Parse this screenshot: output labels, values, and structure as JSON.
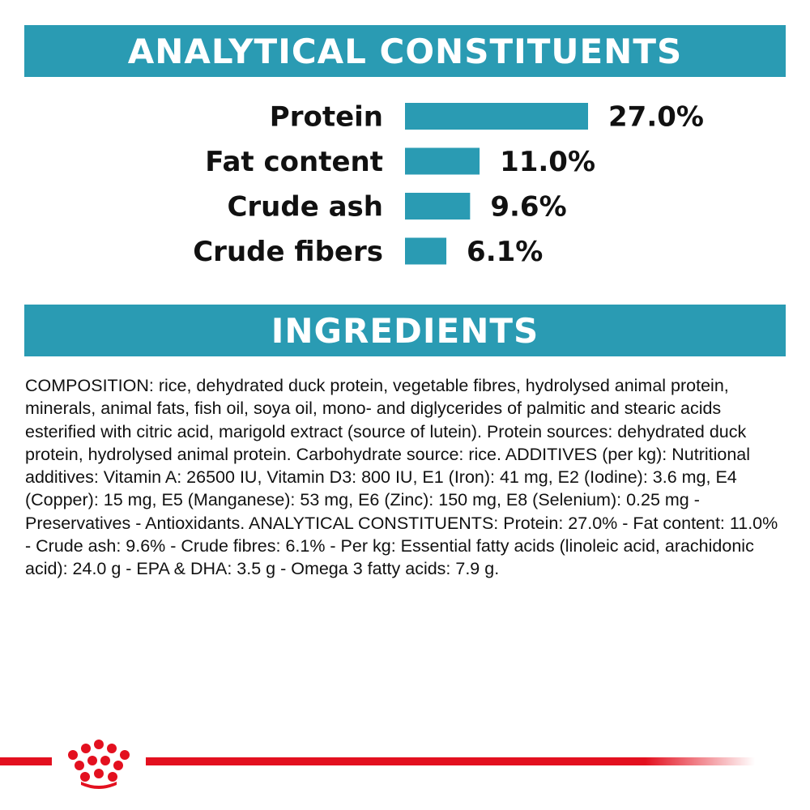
{
  "analytical": {
    "title": "ANALYTICAL CONSTITUENTS"
  },
  "chart_data": {
    "type": "bar",
    "orientation": "horizontal",
    "title": "ANALYTICAL CONSTITUENTS",
    "categories": [
      "Protein",
      "Fat content",
      "Crude ash",
      "Crude fibers"
    ],
    "values": [
      27.0,
      11.0,
      9.6,
      6.1
    ],
    "value_labels": [
      "27.0%",
      "11.0%",
      "9.6%",
      "6.1%"
    ],
    "unit": "%",
    "xlim": [
      0,
      27.0
    ],
    "grid": false,
    "legend": "none",
    "bar_color": "#2a9bb3"
  },
  "ingredients": {
    "title": "INGREDIENTS",
    "composition": "COMPOSITION: rice, dehydrated duck protein, vegetable fibres, hydrolysed animal protein, minerals, animal fats, fish oil, soya oil, mono- and diglycerides of palmitic and stearic acids esterified with citric acid, marigold extract (source of lutein). Protein sources: dehydrated duck protein, hydrolysed animal protein. Carbohydrate source: rice. ADDITIVES (per kg): Nutritional additives: Vitamin A: 26500 IU, Vitamin D3: 800 IU, E1 (Iron): 41 mg, E2 (Iodine): 3.6 mg, E4 (Copper): 15 mg, E5 (Manganese): 53 mg, E6 (Zinc): 150 mg, E8 (Selenium): 0.25 mg - Preservatives - Antioxidants. ANALYTICAL CONSTITUENTS: Protein: 27.0% - Fat content: 11.0% - Crude ash: 9.6% - Crude fibres: 6.1% - Per kg: Essential fatty acids (linoleic acid, arachidonic acid): 24.0 g - EPA & DHA: 3.5 g - Omega 3 fatty acids: 7.9 g."
  },
  "colors": {
    "accent": "#2a9bb3",
    "brand_red": "#e3101f"
  },
  "footer": {
    "logo_icon": "crown-icon"
  }
}
